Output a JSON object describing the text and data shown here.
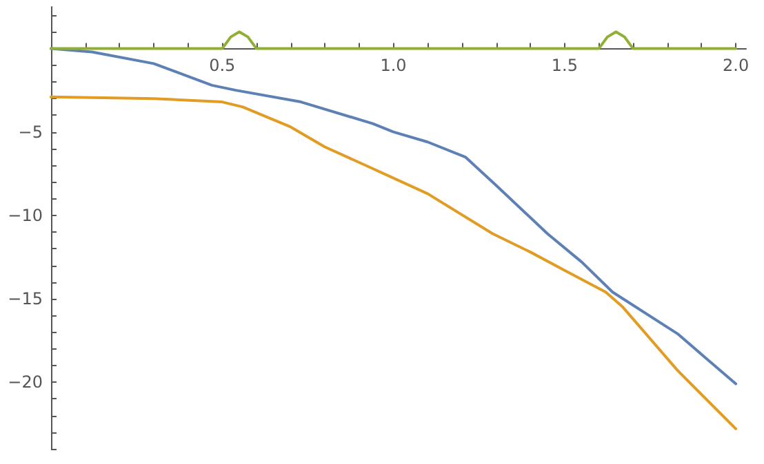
{
  "chart_data": {
    "type": "line",
    "xlim": [
      0,
      2.03
    ],
    "ylim": [
      -24,
      2.5
    ],
    "grid": false,
    "marker": "none",
    "line_style": "solid",
    "xticks": [
      {
        "value": 0,
        "label": null
      },
      {
        "value": 0.1,
        "label": null
      },
      {
        "value": 0.2,
        "label": null
      },
      {
        "value": 0.3,
        "label": null
      },
      {
        "value": 0.4,
        "label": null
      },
      0.5,
      {
        "value": 0.6,
        "label": null
      },
      {
        "value": 0.7,
        "label": null
      },
      {
        "value": 0.8,
        "label": null
      },
      {
        "value": 0.9,
        "label": null
      },
      {
        "value": 1,
        "label": "1.0"
      },
      {
        "value": 1.1,
        "label": null
      },
      {
        "value": 1.2,
        "label": null
      },
      {
        "value": 1.3,
        "label": null
      },
      {
        "value": 1.4,
        "label": null
      },
      1.5,
      {
        "value": 1.6,
        "label": null
      },
      {
        "value": 1.7,
        "label": null
      },
      {
        "value": 1.8,
        "label": null
      },
      {
        "value": 1.9,
        "label": null
      },
      {
        "value": 2,
        "label": "2.0"
      }
    ],
    "yticks": [
      {
        "value": 2,
        "label": null
      },
      {
        "value": 1,
        "label": null
      },
      {
        "value": -1,
        "label": null
      },
      {
        "value": -2,
        "label": null
      },
      {
        "value": -3,
        "label": null
      },
      {
        "value": -4,
        "label": null
      },
      {
        "value": -5,
        "label": "−5"
      },
      {
        "value": -6,
        "label": null
      },
      {
        "value": -7,
        "label": null
      },
      {
        "value": -8,
        "label": null
      },
      {
        "value": -9,
        "label": null
      },
      {
        "value": -10,
        "label": "−10"
      },
      {
        "value": -11,
        "label": null
      },
      {
        "value": -12,
        "label": null
      },
      {
        "value": -13,
        "label": null
      },
      {
        "value": -14,
        "label": null
      },
      {
        "value": -15,
        "label": "−15"
      },
      {
        "value": -16,
        "label": null
      },
      {
        "value": -17,
        "label": null
      },
      {
        "value": -18,
        "label": null
      },
      {
        "value": -19,
        "label": null
      },
      {
        "value": -20,
        "label": "−20"
      },
      {
        "value": -21,
        "label": null
      },
      {
        "value": -22,
        "label": null
      },
      {
        "value": -23,
        "label": null
      },
      {
        "value": -24,
        "label": null
      }
    ],
    "series": [
      {
        "color": "#5e81b5",
        "x": [
          0,
          0.12,
          0.3,
          0.47,
          0.54,
          0.73,
          0.94,
          1.0,
          1.1,
          1.21,
          1.3,
          1.45,
          1.55,
          1.64,
          1.83,
          2.0
        ],
        "values": [
          0,
          -0.2,
          -0.9,
          -2.2,
          -2.5,
          -3.2,
          -4.5,
          -5.0,
          -5.6,
          -6.5,
          -8.2,
          -11.1,
          -12.8,
          -14.6,
          -17.1,
          -20.1
        ]
      },
      {
        "color": "#e19c24",
        "x": [
          0,
          0.3,
          0.5,
          0.56,
          0.7,
          0.8,
          0.94,
          1.1,
          1.29,
          1.4,
          1.5,
          1.62,
          1.67,
          1.83,
          2.0
        ],
        "values": [
          -2.9,
          -3.0,
          -3.2,
          -3.5,
          -4.7,
          -5.9,
          -7.2,
          -8.7,
          -11.1,
          -12.2,
          -13.3,
          -14.6,
          -15.5,
          -19.3,
          -22.8
        ]
      },
      {
        "color": "#8fb032",
        "x": [
          0,
          0.5,
          0.525,
          0.55,
          0.575,
          0.6,
          1.6,
          1.625,
          1.65,
          1.675,
          1.7,
          2.0
        ],
        "values": [
          0,
          0,
          0.7,
          1.0,
          0.7,
          0,
          0,
          0.7,
          1.0,
          0.7,
          0,
          0
        ]
      }
    ]
  }
}
